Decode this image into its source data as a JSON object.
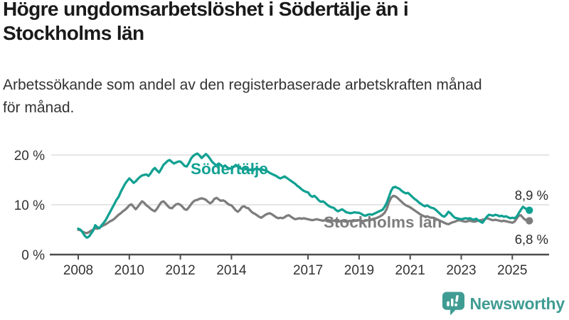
{
  "header": {
    "title_lines": [
      "Högre ungdomsarbetslöshet i Södertälje än i",
      "Stockholms län"
    ],
    "subtitle_lines": [
      "Arbetssökande som andel av den registerbaserade arbetskraften månad",
      "för månad."
    ]
  },
  "colors": {
    "sodertalje": "#11a192",
    "stockholm": "#7d7d7d",
    "grid": "#d8d8d8",
    "axis": "#4d4d4d",
    "tick_text": "#333333",
    "value_text": "#2b2b2b",
    "logo_teal": "#3f9c93"
  },
  "logo": {
    "text": "Newsworthy"
  },
  "chart_data": {
    "type": "line",
    "title": "Högre ungdomsarbetslöshet i Södertälje än i Stockholms län",
    "subtitle": "Arbetssökande som andel av den registerbaserade arbetskraften månad för månad.",
    "xlabel": "",
    "ylabel": "",
    "grid": "horizontal",
    "legend_position": "inline-labels",
    "x_axis": {
      "start_year": 2008,
      "frequency": "monthly",
      "tick_years": [
        2008,
        2010,
        2012,
        2014,
        2017,
        2019,
        2021,
        2023,
        2025
      ]
    },
    "y_axis": {
      "tick_values": [
        0,
        10,
        20
      ],
      "tick_labels": [
        "0 %",
        "10 %",
        "20 %"
      ],
      "ylim": [
        0,
        21.5
      ]
    },
    "series": [
      {
        "name": "Södertälje",
        "color": "#11a192",
        "end_label": "8,9 %",
        "end_value": 8.9,
        "values": [
          5.2,
          5.0,
          4.5,
          3.8,
          3.4,
          3.6,
          4.2,
          4.8,
          5.9,
          5.5,
          5.3,
          5.9,
          6.4,
          7.0,
          7.8,
          8.6,
          9.4,
          10.2,
          11.0,
          11.6,
          12.6,
          13.4,
          14.2,
          14.8,
          15.3,
          14.9,
          14.4,
          14.7,
          15.2,
          15.6,
          15.9,
          16.0,
          16.1,
          15.8,
          16.3,
          17.0,
          17.4,
          16.9,
          16.5,
          17.2,
          18.0,
          18.4,
          18.8,
          19.0,
          18.6,
          18.3,
          18.5,
          18.7,
          18.7,
          18.3,
          17.8,
          17.7,
          18.4,
          19.3,
          19.8,
          20.1,
          20.3,
          19.9,
          19.4,
          19.8,
          20.2,
          19.8,
          19.2,
          18.6,
          18.2,
          17.9,
          18.3,
          18.0,
          17.6,
          17.9,
          17.5,
          17.3,
          17.3,
          17.6,
          18.0,
          17.7,
          17.4,
          17.2,
          17.5,
          17.2,
          16.9,
          17.1,
          16.8,
          17.2,
          17.3,
          17.1,
          17.2,
          17.0,
          16.9,
          16.7,
          16.4,
          16.2,
          16.0,
          15.8,
          15.5,
          15.3,
          15.5,
          15.7,
          15.4,
          15.1,
          14.8,
          14.5,
          14.2,
          13.8,
          13.5,
          13.1,
          12.8,
          12.6,
          12.5,
          11.9,
          11.6,
          11.8,
          11.4,
          10.9,
          10.6,
          10.7,
          10.4,
          10.0,
          9.7,
          9.5,
          9.4,
          9.0,
          8.7,
          8.9,
          9.1,
          8.8,
          8.5,
          8.4,
          8.3,
          8.4,
          8.5,
          8.4,
          8.4,
          8.2,
          7.9,
          7.8,
          8.0,
          8.1,
          8.0,
          8.2,
          8.4,
          8.6,
          8.8,
          9.0,
          9.6,
          10.4,
          11.6,
          12.8,
          13.5,
          13.6,
          13.4,
          13.2,
          12.8,
          12.5,
          12.3,
          12.4,
          12.0,
          11.6,
          11.2,
          10.9,
          10.5,
          10.2,
          9.9,
          9.7,
          9.9,
          9.6,
          9.4,
          9.3,
          9.0,
          8.6,
          8.2,
          7.8,
          7.6,
          8.0,
          8.6,
          8.3,
          7.8,
          7.4,
          7.3,
          7.2,
          7.1,
          7.2,
          7.3,
          7.2,
          7.3,
          7.1,
          7.0,
          7.2,
          6.9,
          6.6,
          6.4,
          7.0,
          7.6,
          8.0,
          7.9,
          7.8,
          8.0,
          7.9,
          7.7,
          7.8,
          7.6,
          7.7,
          7.5,
          7.3,
          7.4,
          7.3,
          7.6,
          8.3,
          9.0,
          9.6,
          9.3,
          9.0,
          8.9
        ]
      },
      {
        "name": "Stockholms län",
        "color": "#7d7d7d",
        "end_label": "6,8 %",
        "end_value": 6.8,
        "values": [
          5.0,
          4.9,
          4.6,
          4.4,
          4.3,
          4.5,
          4.8,
          5.0,
          5.3,
          5.2,
          5.4,
          5.7,
          5.9,
          6.1,
          6.4,
          6.7,
          6.9,
          7.2,
          7.6,
          8.0,
          8.3,
          8.7,
          9.0,
          9.4,
          9.9,
          10.1,
          9.6,
          9.1,
          9.6,
          10.2,
          10.7,
          10.4,
          9.9,
          9.6,
          9.2,
          8.9,
          8.7,
          9.2,
          9.9,
          10.5,
          10.7,
          10.3,
          9.8,
          9.4,
          9.3,
          9.7,
          10.1,
          10.2,
          10.0,
          9.6,
          9.1,
          9.0,
          9.5,
          10.1,
          10.6,
          10.9,
          11.0,
          11.2,
          11.3,
          11.2,
          11.0,
          10.6,
          10.3,
          10.6,
          11.2,
          11.4,
          11.1,
          10.8,
          10.9,
          10.7,
          10.3,
          10.0,
          9.9,
          9.4,
          8.9,
          8.6,
          9.0,
          9.6,
          9.7,
          9.4,
          9.3,
          8.8,
          8.4,
          8.2,
          7.9,
          7.6,
          7.4,
          7.7,
          8.0,
          8.2,
          8.3,
          8.1,
          7.8,
          7.5,
          7.3,
          7.4,
          7.3,
          7.5,
          7.8,
          7.9,
          7.6,
          7.3,
          7.1,
          7.2,
          7.3,
          7.2,
          7.3,
          7.2,
          7.1,
          7.0,
          6.9,
          7.0,
          7.1,
          7.0,
          6.9,
          6.8,
          6.9,
          7.0,
          6.9,
          6.8,
          6.8,
          6.7,
          6.6,
          6.7,
          6.8,
          6.7,
          6.6,
          6.7,
          6.8,
          6.7,
          6.8,
          6.9,
          6.9,
          6.8,
          6.7,
          6.8,
          6.9,
          7.0,
          7.1,
          7.2,
          7.3,
          7.5,
          7.7,
          8.0,
          8.4,
          9.2,
          10.5,
          11.4,
          11.8,
          11.7,
          11.4,
          11.0,
          10.6,
          10.2,
          9.9,
          9.7,
          9.5,
          9.2,
          8.9,
          8.6,
          8.3,
          8.0,
          7.8,
          7.6,
          7.7,
          7.5,
          7.4,
          7.4,
          7.2,
          7.0,
          6.8,
          6.6,
          6.4,
          6.2,
          6.1,
          6.3,
          6.5,
          6.6,
          6.8,
          6.9,
          6.8,
          6.7,
          6.6,
          6.7,
          6.8,
          6.7,
          6.6,
          6.7,
          6.8,
          6.9,
          7.0,
          7.1,
          7.3,
          7.2,
          7.0,
          6.9,
          7.0,
          6.9,
          6.8,
          6.7,
          6.8,
          6.7,
          6.6,
          6.5,
          6.4,
          6.6,
          7.2,
          7.8,
          7.9,
          7.4,
          7.0,
          6.9,
          6.8
        ]
      }
    ]
  }
}
